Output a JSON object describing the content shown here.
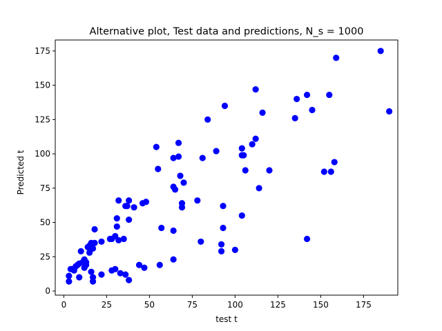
{
  "chart_data": {
    "type": "scatter",
    "title": "Alternative plot, Test data and predictions, N_s = 1000",
    "xlabel": "test t",
    "ylabel": "Predicted t",
    "xlim": [
      -5,
      195
    ],
    "ylim": [
      -3,
      183
    ],
    "xticks": [
      0,
      25,
      50,
      75,
      100,
      125,
      150,
      175
    ],
    "yticks": [
      0,
      25,
      50,
      75,
      100,
      125,
      150,
      175
    ],
    "grid": false,
    "legend": "none",
    "marker_color": "#0000ff",
    "series": [
      {
        "points": [
          [
            185,
            175
          ],
          [
            159,
            170
          ],
          [
            112,
            147
          ],
          [
            94,
            135
          ],
          [
            142,
            143
          ],
          [
            136,
            140
          ],
          [
            155,
            143
          ],
          [
            116,
            130
          ],
          [
            145,
            132
          ],
          [
            190,
            131
          ],
          [
            135,
            126
          ],
          [
            84,
            125
          ],
          [
            112,
            111
          ],
          [
            110,
            107
          ],
          [
            104,
            104
          ],
          [
            89,
            102
          ],
          [
            67,
            108
          ],
          [
            54,
            105
          ],
          [
            105,
            99
          ],
          [
            104,
            99
          ],
          [
            81,
            97
          ],
          [
            64,
            97
          ],
          [
            67,
            98
          ],
          [
            55,
            89
          ],
          [
            106,
            88
          ],
          [
            120,
            88
          ],
          [
            152,
            87
          ],
          [
            156,
            87
          ],
          [
            158,
            94
          ],
          [
            68,
            84
          ],
          [
            70,
            79
          ],
          [
            64,
            76
          ],
          [
            65,
            74
          ],
          [
            114,
            75
          ],
          [
            69,
            64
          ],
          [
            69,
            61
          ],
          [
            78,
            66
          ],
          [
            93,
            62
          ],
          [
            93,
            46
          ],
          [
            104,
            55
          ],
          [
            64,
            44
          ],
          [
            57,
            46
          ],
          [
            142,
            38
          ],
          [
            80,
            36
          ],
          [
            92,
            34
          ],
          [
            92,
            29
          ],
          [
            100,
            30
          ],
          [
            64,
            23
          ],
          [
            56,
            19
          ],
          [
            47,
            17
          ],
          [
            44,
            19
          ],
          [
            32,
            66
          ],
          [
            38,
            66
          ],
          [
            36,
            62
          ],
          [
            37,
            62
          ],
          [
            41,
            61
          ],
          [
            46,
            64
          ],
          [
            48,
            65
          ],
          [
            31,
            53
          ],
          [
            38,
            52
          ],
          [
            31,
            47
          ],
          [
            18,
            45
          ],
          [
            30,
            40
          ],
          [
            35,
            38
          ],
          [
            32,
            37
          ],
          [
            28,
            38
          ],
          [
            27,
            38
          ],
          [
            22,
            36
          ],
          [
            18,
            35
          ],
          [
            17,
            31
          ],
          [
            16,
            35
          ],
          [
            15,
            33
          ],
          [
            14,
            32
          ],
          [
            15,
            28
          ],
          [
            13,
            21
          ],
          [
            12,
            23
          ],
          [
            11,
            21
          ],
          [
            13,
            19
          ],
          [
            12,
            17
          ],
          [
            10,
            29
          ],
          [
            9,
            20
          ],
          [
            8,
            19
          ],
          [
            7,
            18
          ],
          [
            6,
            15
          ],
          [
            5,
            16
          ],
          [
            4,
            16
          ],
          [
            3,
            11
          ],
          [
            3,
            7
          ],
          [
            9,
            10
          ],
          [
            16,
            14
          ],
          [
            17,
            10
          ],
          [
            17,
            7
          ],
          [
            22,
            12
          ],
          [
            28,
            15
          ],
          [
            30,
            16
          ],
          [
            33,
            13
          ],
          [
            36,
            12
          ],
          [
            38,
            8
          ]
        ]
      }
    ]
  }
}
